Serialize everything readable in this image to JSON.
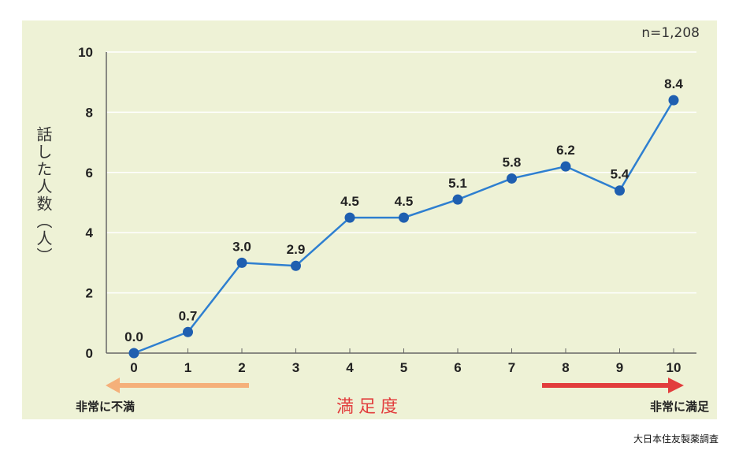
{
  "chart_data": {
    "type": "line",
    "sample_label": "n=1,208",
    "ylabel": "話した人数（人）",
    "xlabel": "満足度",
    "low_label": "非常に不満",
    "high_label": "非常に満足",
    "source": "大日本住友製薬調査",
    "x": [
      "0",
      "1",
      "2",
      "3",
      "4",
      "5",
      "6",
      "7",
      "8",
      "9",
      "10"
    ],
    "values": [
      0.0,
      0.7,
      3.0,
      2.9,
      4.5,
      4.5,
      5.1,
      5.8,
      6.2,
      5.4,
      8.4
    ],
    "value_labels": [
      "0.0",
      "0.7",
      "3.0",
      "2.9",
      "4.5",
      "4.5",
      "5.1",
      "5.8",
      "6.2",
      "5.4",
      "8.4"
    ],
    "yticks": [
      "0",
      "2",
      "4",
      "6",
      "8",
      "10"
    ],
    "ylim": [
      0,
      10
    ],
    "grid": "horizontal",
    "colors": {
      "line": "#2e7fd0",
      "marker": "#1f5fb0",
      "accent": "#e23d3d",
      "left_arrow": "#f5b07a",
      "right_arrow": "#e23d3d"
    }
  }
}
